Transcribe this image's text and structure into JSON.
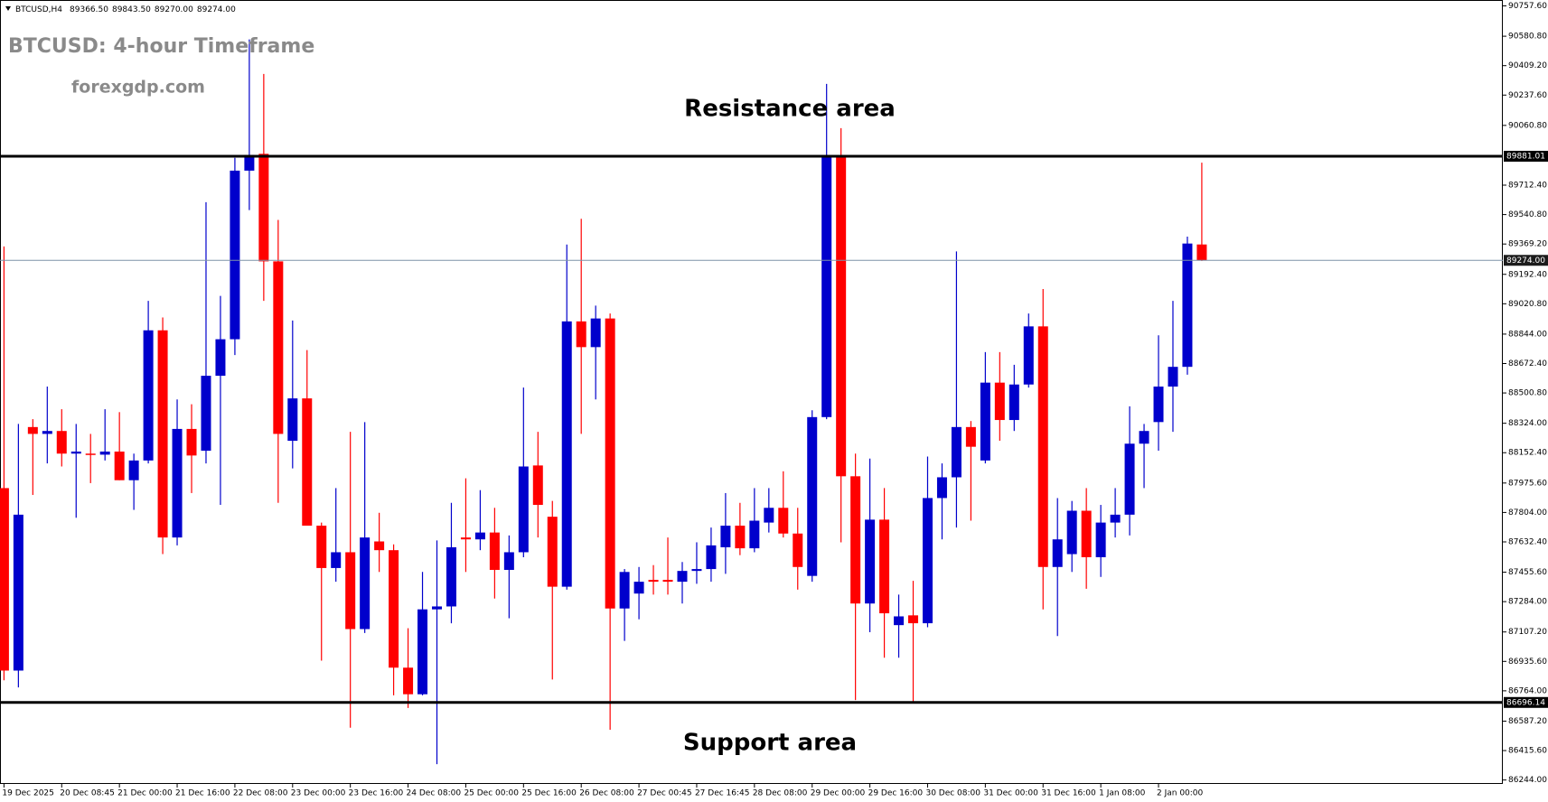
{
  "chart_data": {
    "type": "candlestick",
    "symbol": "BTCUSD,H4",
    "header_values": [
      "89366.50",
      "89843.50",
      "89270.00",
      "89274.00"
    ],
    "title": "BTCUSD: 4-hour Timeframe",
    "subtitle": "forexgdp.com",
    "annotations": [
      "Resistance area",
      "Support area"
    ],
    "categories": [
      "19 Dec 2025",
      null,
      null,
      null,
      "20 Dec 08:45",
      null,
      null,
      null,
      "21 Dec 00:00",
      null,
      null,
      null,
      "21 Dec 16:00",
      null,
      null,
      null,
      "22 Dec 08:00",
      null,
      null,
      null,
      "23 Dec 00:00",
      null,
      null,
      null,
      "23 Dec 16:00",
      null,
      null,
      null,
      "24 Dec 08:00",
      null,
      null,
      null,
      "25 Dec 00:00",
      null,
      null,
      null,
      "25 Dec 16:00",
      null,
      null,
      null,
      "26 Dec 08:00",
      null,
      null,
      null,
      "27 Dec 00:45",
      null,
      null,
      null,
      "27 Dec 16:45",
      null,
      null,
      null,
      "28 Dec 08:00",
      null,
      null,
      null,
      "29 Dec 00:00",
      null,
      null,
      null,
      "29 Dec 16:00",
      null,
      null,
      null,
      "30 Dec 08:00",
      null,
      null,
      null,
      "31 Dec 00:00",
      null,
      null,
      null,
      "31 Dec 16:00",
      null,
      null,
      null,
      "1 Jan 08:00",
      null,
      null,
      null,
      "2 Jan 00:00",
      null,
      null,
      null
    ],
    "open": [
      87946,
      86882,
      88302,
      88262,
      88279,
      88147,
      88147,
      88141,
      88159,
      87992,
      88107,
      88866,
      87658,
      88291,
      88164,
      88601,
      88814,
      89797,
      89895,
      89268,
      88222,
      88469,
      87727,
      87480,
      87572,
      87124,
      87635,
      87584,
      86899,
      86744,
      87239,
      87256,
      87658,
      87647,
      87687,
      87469,
      87572,
      88078,
      87779,
      87371,
      88918,
      88768,
      88935,
      87244,
      87331,
      87411,
      87411,
      87400,
      87463,
      87474,
      87601,
      87727,
      87595,
      87745,
      87831,
      87681,
      87434,
      88360,
      89884,
      88015,
      87273,
      87762,
      87147,
      87204,
      87158,
      87888,
      88009,
      88302,
      88107,
      88561,
      88343,
      88550,
      88889,
      87486,
      87561,
      87814,
      87543,
      87745,
      87791,
      88205,
      88331,
      88538,
      88653,
      89366.5
    ],
    "high": [
      89355,
      88320,
      88348,
      88538,
      88406,
      88320,
      88262,
      88406,
      88389,
      88147,
      89038,
      88941,
      88463,
      88435,
      89613,
      89067,
      89872,
      90562,
      90361,
      89510,
      88923,
      88751,
      87745,
      87946,
      88274,
      88331,
      87802,
      87618,
      87129,
      87457,
      87641,
      87860,
      88003,
      87934,
      87831,
      87670,
      88532,
      88274,
      87871,
      89366,
      89516,
      89010,
      88964,
      87474,
      87486,
      87497,
      87658,
      87515,
      87630,
      87716,
      87917,
      87860,
      87946,
      87946,
      88044,
      87831,
      88400,
      90303,
      90045,
      88147,
      88118,
      87946,
      87325,
      87405,
      88130,
      88090,
      89326,
      88337,
      88739,
      88739,
      88665,
      88964,
      89107,
      87888,
      87871,
      87946,
      87848,
      87946,
      88423,
      88320,
      88837,
      89038,
      89412,
      89843.5
    ],
    "low": [
      86825,
      86784,
      87906,
      88090,
      88072,
      87773,
      87975,
      88107,
      87992,
      87819,
      88090,
      87561,
      87612,
      87917,
      88090,
      87848,
      88722,
      89567,
      89038,
      87860,
      88061,
      87727,
      86940,
      87400,
      86549,
      87101,
      87457,
      86738,
      86664,
      86738,
      86336,
      87158,
      87457,
      87584,
      87302,
      87187,
      87543,
      87658,
      86830,
      87354,
      88262,
      88463,
      86537,
      87055,
      87181,
      87325,
      87325,
      87273,
      87388,
      87400,
      87446,
      87555,
      87572,
      87687,
      87658,
      87354,
      87400,
      88348,
      87630,
      86710,
      87106,
      86957,
      86957,
      86698,
      87135,
      87647,
      87716,
      87756,
      88090,
      88222,
      88279,
      88532,
      87239,
      87083,
      87457,
      87359,
      87428,
      87658,
      87670,
      87946,
      88164,
      88274,
      88607,
      89270
    ],
    "close": [
      86882,
      87791,
      88262,
      88279,
      88147,
      88159,
      88141,
      88159,
      87992,
      88107,
      88866,
      87658,
      88291,
      88136,
      88601,
      88814,
      89797,
      89889,
      89268,
      88262,
      88469,
      87727,
      87480,
      87572,
      87124,
      87658,
      87584,
      86899,
      86744,
      87239,
      87256,
      87601,
      87647,
      87687,
      87469,
      87572,
      88072,
      87848,
      87371,
      88918,
      88768,
      88935,
      87244,
      87457,
      87400,
      87400,
      87400,
      87463,
      87474,
      87612,
      87727,
      87595,
      87756,
      87831,
      87681,
      87486,
      88360,
      89884,
      88015,
      87273,
      87762,
      87216,
      87198,
      87158,
      87888,
      88009,
      88302,
      88187,
      88561,
      88343,
      88550,
      88889,
      87486,
      87647,
      87814,
      87543,
      87745,
      87791,
      88205,
      88279,
      88538,
      88653,
      89372,
      89274
    ],
    "up_color": "#0000cc",
    "down_color": "#ff0000",
    "ylim": [
      86221,
      90792
    ],
    "yticks": [
      {
        "value": 90757.6,
        "label": "90757.60"
      },
      {
        "value": 90580.8,
        "label": "90580.80"
      },
      {
        "value": 90409.2,
        "label": "90409.20"
      },
      {
        "value": 90237.6,
        "label": "90237.60"
      },
      {
        "value": 90060.8,
        "label": "90060.80"
      },
      {
        "value": 89712.4,
        "label": "89712.40"
      },
      {
        "value": 89540.8,
        "label": "89540.80"
      },
      {
        "value": 89369.2,
        "label": "89369.20"
      },
      {
        "value": 89192.4,
        "label": "89192.40"
      },
      {
        "value": 89020.8,
        "label": "89020.80"
      },
      {
        "value": 88844,
        "label": "88844.00"
      },
      {
        "value": 88672.4,
        "label": "88672.40"
      },
      {
        "value": 88500.8,
        "label": "88500.80"
      },
      {
        "value": 88324,
        "label": "88324.00"
      },
      {
        "value": 88152.4,
        "label": "88152.40"
      },
      {
        "value": 87975.6,
        "label": "87975.60"
      },
      {
        "value": 87804,
        "label": "87804.00"
      },
      {
        "value": 87632.4,
        "label": "87632.40"
      },
      {
        "value": 87455.6,
        "label": "87455.60"
      },
      {
        "value": 87284,
        "label": "87284.00"
      },
      {
        "value": 87107.2,
        "label": "87107.20"
      },
      {
        "value": 86935.6,
        "label": "86935.60"
      },
      {
        "value": 86764,
        "label": "86764.00"
      },
      {
        "value": 86587.2,
        "label": "86587.20"
      },
      {
        "value": 86415.6,
        "label": "86415.60"
      },
      {
        "value": 86244,
        "label": "86244.00"
      }
    ],
    "levels": [
      {
        "value": 89881.01,
        "label": "89881.01",
        "color": "#000000"
      },
      {
        "value": 86696.14,
        "label": "86696.14",
        "color": "#000000"
      },
      {
        "value": 89274,
        "label": "89274.00",
        "color": "#7f93a8"
      }
    ]
  }
}
